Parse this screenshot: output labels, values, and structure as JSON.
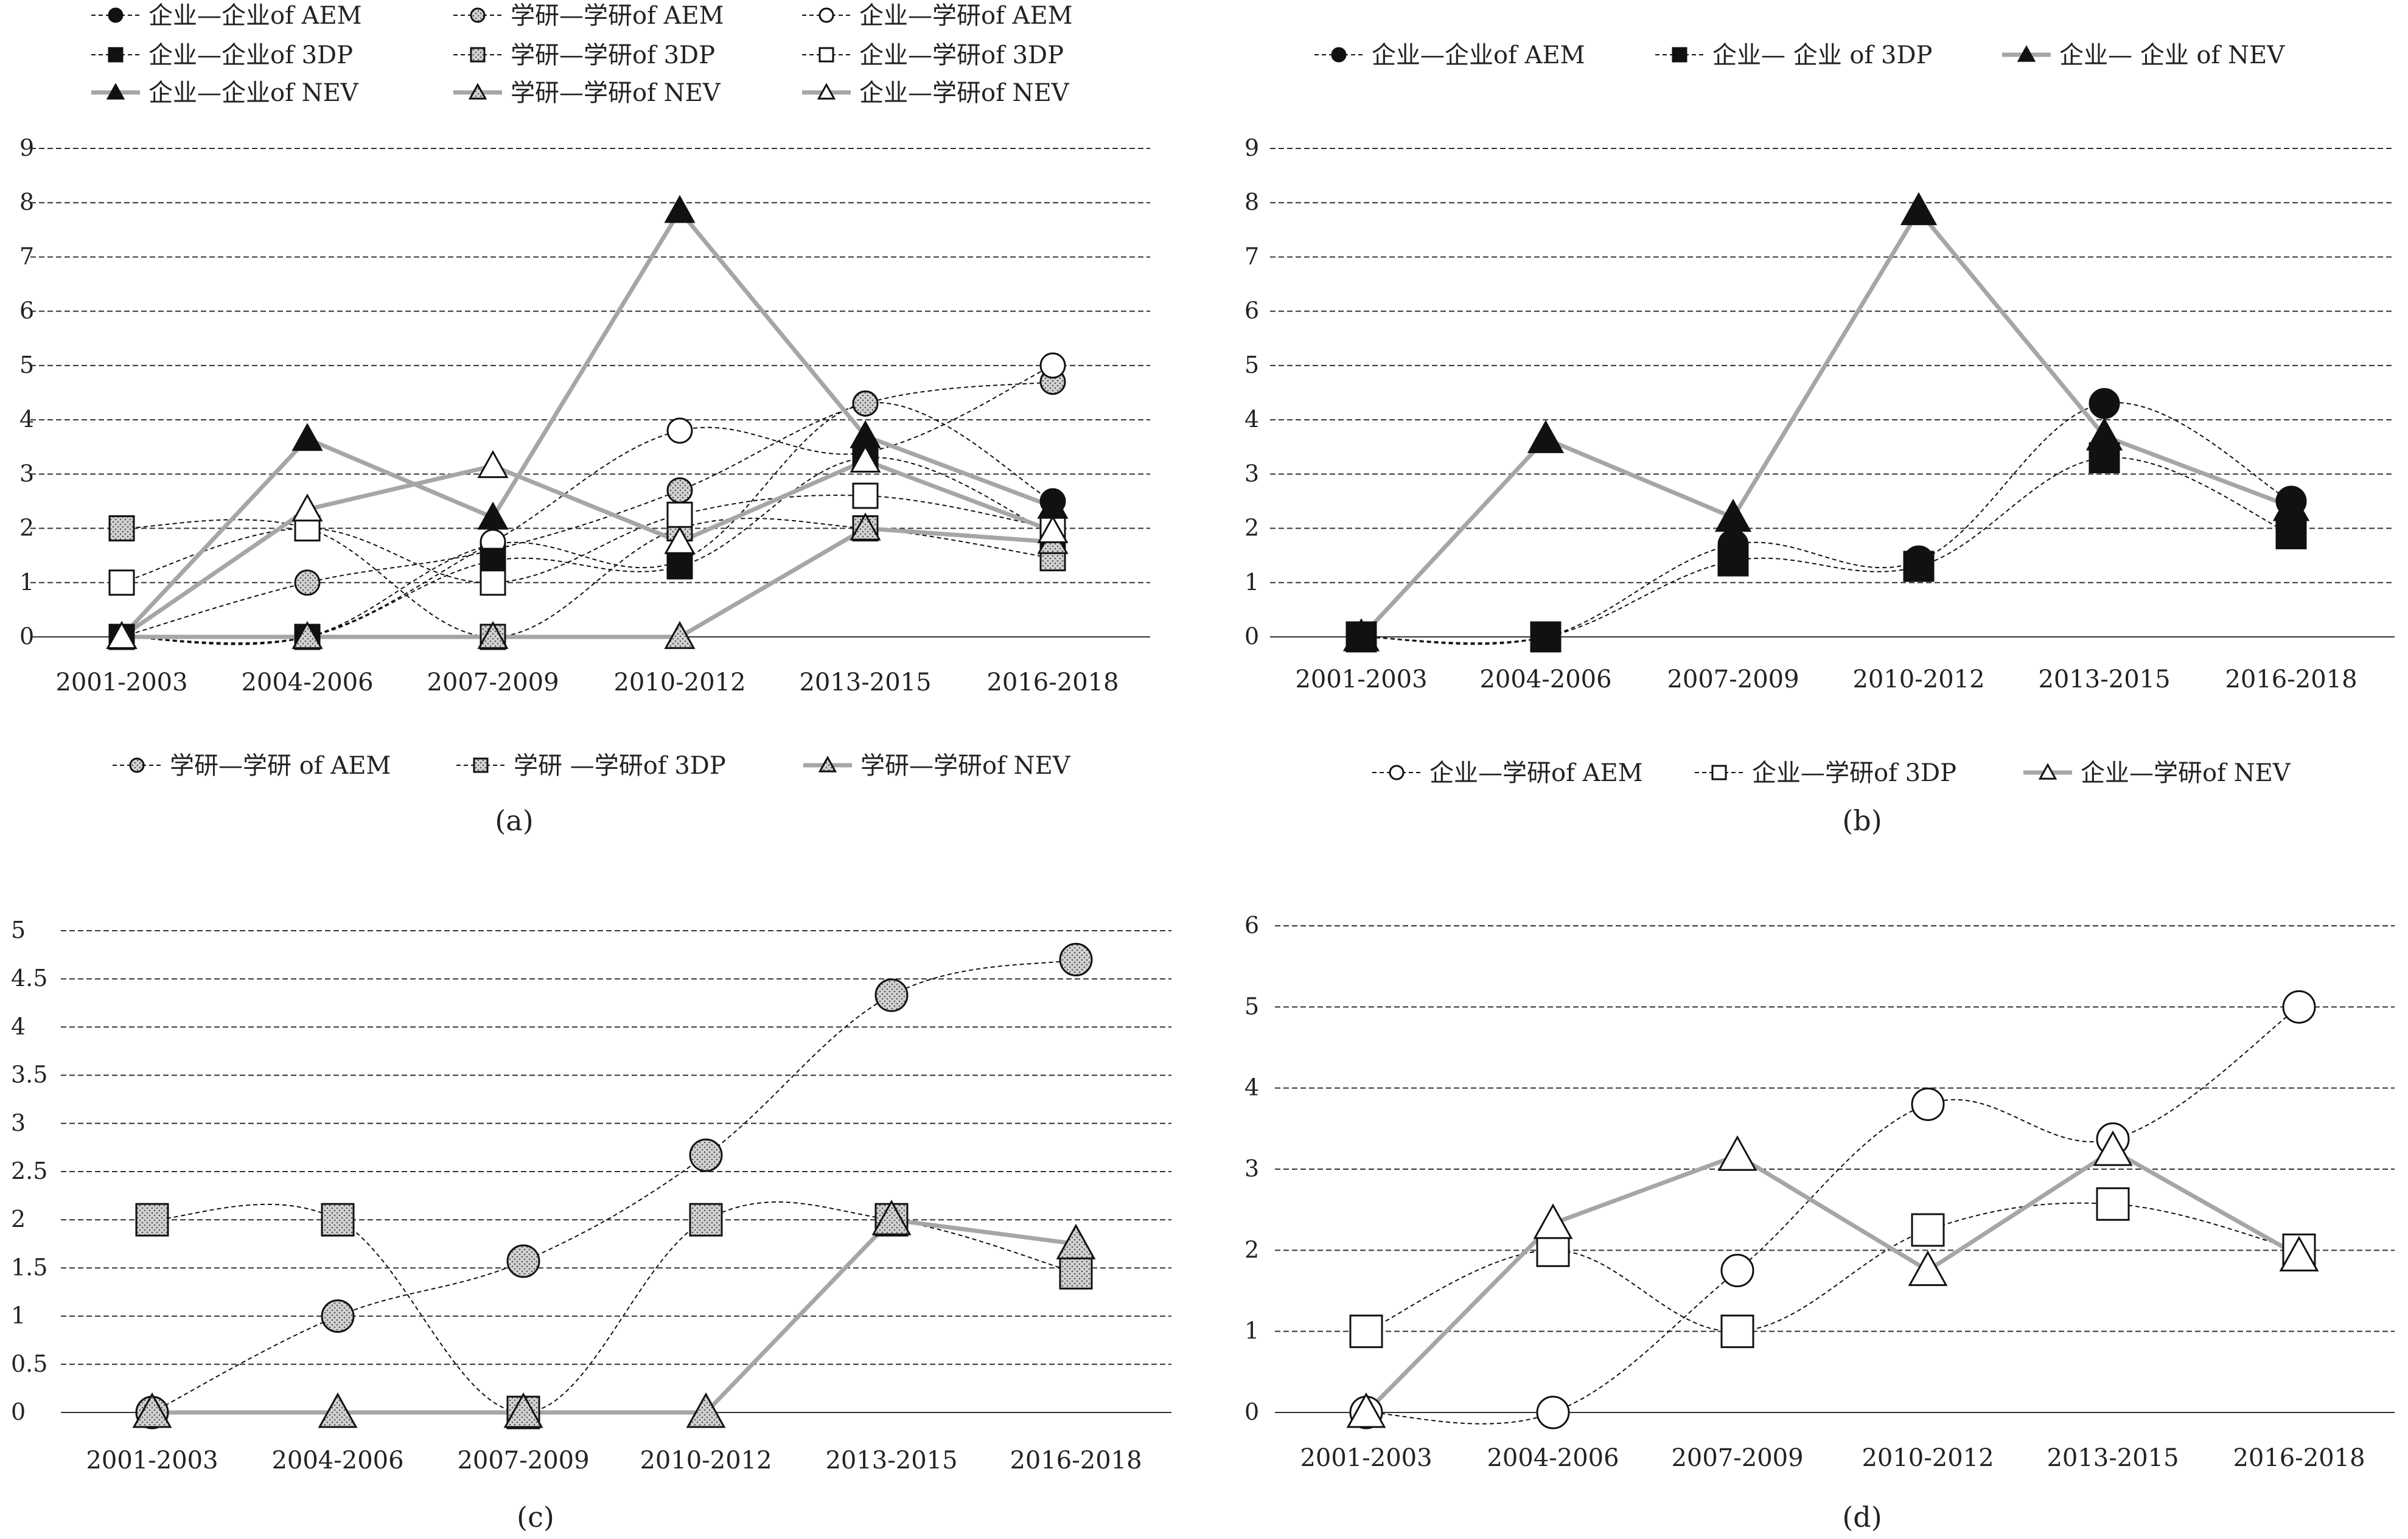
{
  "colors": {
    "gray": "#a6a6a6",
    "black": "#111111",
    "dotted_fill": "#d2d2d2",
    "grid": "#333333",
    "white": "#ffffff"
  },
  "chart_data": [
    {
      "id": "a",
      "type": "line",
      "caption": "(a)",
      "categories": [
        "2001-2003",
        "2004-2006",
        "2007-2009",
        "2010-2012",
        "2013-2015",
        "2016-2018"
      ],
      "ylim": [
        0,
        9
      ],
      "yticks": [
        "0",
        "1",
        "2",
        "3",
        "4",
        "5",
        "6",
        "7",
        "8",
        "9"
      ],
      "legend_position": "top",
      "series": [
        {
          "name": "企业—企业of AEM",
          "style": "dash",
          "color": "#111111",
          "marker": "circle",
          "mfill": "black",
          "msize": "small",
          "width": 2,
          "values": [
            0,
            0,
            1.7,
            1.4,
            4.3,
            2.5
          ]
        },
        {
          "name": "学研—学研of AEM",
          "style": "dash",
          "color": "#111111",
          "marker": "circle",
          "mfill": "dotted",
          "msize": "small",
          "width": 2,
          "values": [
            0,
            1,
            1.6,
            2.7,
            4.3,
            4.7
          ]
        },
        {
          "name": "企业—学研of AEM",
          "style": "dash",
          "color": "#111111",
          "marker": "circle",
          "mfill": "white",
          "msize": "small",
          "width": 2,
          "values": [
            0,
            0,
            1.75,
            3.8,
            3.4,
            5.0
          ]
        },
        {
          "name": "企业—企业of 3DP",
          "style": "dash",
          "color": "#111111",
          "marker": "square",
          "mfill": "black",
          "msize": "small",
          "width": 2,
          "values": [
            0,
            0,
            1.4,
            1.3,
            3.3,
            1.9
          ]
        },
        {
          "name": "学研—学研of 3DP",
          "style": "dash",
          "color": "#111111",
          "marker": "square",
          "mfill": "dotted",
          "msize": "small",
          "width": 2,
          "values": [
            2,
            2,
            0,
            2,
            2,
            1.45
          ]
        },
        {
          "name": "企业—学研of 3DP",
          "style": "dash",
          "color": "#111111",
          "marker": "square",
          "mfill": "white",
          "msize": "small",
          "width": 2,
          "values": [
            1,
            2,
            1,
            2.25,
            2.6,
            2
          ]
        },
        {
          "name": "企业—企业of NEV",
          "style": "solid",
          "color": "#a6a6a6",
          "marker": "triangle",
          "mfill": "black",
          "msize": "small",
          "width": 7,
          "values": [
            0,
            3.65,
            2.2,
            7.85,
            3.7,
            2.4
          ]
        },
        {
          "name": "学研—学研of NEV",
          "style": "solid",
          "color": "#a6a6a6",
          "marker": "triangle",
          "mfill": "dotted",
          "msize": "small",
          "width": 7,
          "values": [
            0,
            0,
            0,
            0,
            2,
            1.75
          ]
        },
        {
          "name": "企业—学研of NEV",
          "style": "solid",
          "color": "#a6a6a6",
          "marker": "triangle",
          "mfill": "white",
          "msize": "small",
          "width": 7,
          "values": [
            0,
            2.35,
            3.15,
            1.75,
            3.25,
            1.95
          ]
        }
      ]
    },
    {
      "id": "b",
      "type": "line",
      "caption": "(b)",
      "categories": [
        "2001-2003",
        "2004-2006",
        "2007-2009",
        "2010-2012",
        "2013-2015",
        "2016-2018"
      ],
      "ylim": [
        0,
        9
      ],
      "yticks": [
        "0",
        "1",
        "2",
        "3",
        "4",
        "5",
        "6",
        "7",
        "8",
        "9"
      ],
      "legend_position": "top",
      "series": [
        {
          "name": "企业—企业of AEM",
          "style": "dash",
          "color": "#111111",
          "marker": "circle",
          "mfill": "black",
          "msize": "large",
          "width": 2,
          "values": [
            0,
            0,
            1.7,
            1.4,
            4.3,
            2.5
          ]
        },
        {
          "name": "企业— 企业 of 3DP",
          "style": "dash",
          "color": "#111111",
          "marker": "square",
          "mfill": "black",
          "msize": "large",
          "width": 2,
          "values": [
            0,
            0,
            1.4,
            1.3,
            3.3,
            1.9
          ]
        },
        {
          "name": "企业— 企业 of NEV",
          "style": "solid",
          "color": "#a6a6a6",
          "marker": "triangle",
          "mfill": "black",
          "msize": "large",
          "width": 7,
          "values": [
            0,
            3.65,
            2.2,
            7.85,
            3.7,
            2.4
          ]
        }
      ]
    },
    {
      "id": "c",
      "type": "line",
      "caption": "(c)",
      "categories": [
        "2001-2003",
        "2004-2006",
        "2007-2009",
        "2010-2012",
        "2013-2015",
        "2016-2018"
      ],
      "ylim": [
        0,
        5
      ],
      "yticks": [
        "0",
        "0.5",
        "1",
        "1.5",
        "2",
        "2.5",
        "3",
        "3.5",
        "4",
        "4.5",
        "5"
      ],
      "legend_position": "above-right",
      "series": [
        {
          "name": "学研—学研 of AEM",
          "style": "dash",
          "color": "#111111",
          "marker": "circle",
          "mfill": "dotted",
          "msize": "large",
          "width": 2,
          "values": [
            0,
            1,
            1.57,
            2.67,
            4.33,
            4.7
          ]
        },
        {
          "name": "学研 —学研of 3DP",
          "style": "dash",
          "color": "#111111",
          "marker": "square",
          "mfill": "dotted",
          "msize": "large",
          "width": 2,
          "values": [
            2,
            2,
            0,
            2,
            2,
            1.45
          ]
        },
        {
          "name": "学研—学研of NEV",
          "style": "solid",
          "color": "#a6a6a6",
          "marker": "triangle",
          "mfill": "dotted",
          "msize": "large",
          "width": 7,
          "values": [
            0,
            0,
            0,
            0,
            2,
            1.75
          ]
        }
      ]
    },
    {
      "id": "d",
      "type": "line",
      "caption": "(d)",
      "categories": [
        "2001-2003",
        "2004-2006",
        "2007-2009",
        "2010-2012",
        "2013-2015",
        "2016-2018"
      ],
      "ylim": [
        0,
        6
      ],
      "yticks": [
        "0",
        "1",
        "2",
        "3",
        "4",
        "5",
        "6"
      ],
      "legend_position": "above",
      "series": [
        {
          "name": "企业—学研of AEM",
          "style": "dash",
          "color": "#111111",
          "marker": "circle",
          "mfill": "white",
          "msize": "large",
          "width": 2,
          "values": [
            0,
            0,
            1.75,
            3.8,
            3.37,
            5.0
          ]
        },
        {
          "name": "企业—学研of 3DP",
          "style": "dash",
          "color": "#111111",
          "marker": "square",
          "mfill": "white",
          "msize": "large",
          "width": 2,
          "values": [
            1,
            2,
            1,
            2.25,
            2.57,
            2
          ]
        },
        {
          "name": "企业—学研of NEV",
          "style": "solid",
          "color": "#a6a6a6",
          "marker": "triangle",
          "mfill": "white",
          "msize": "large",
          "width": 7,
          "values": [
            0,
            2.33,
            3.17,
            1.75,
            3.23,
            1.93
          ]
        }
      ]
    }
  ]
}
